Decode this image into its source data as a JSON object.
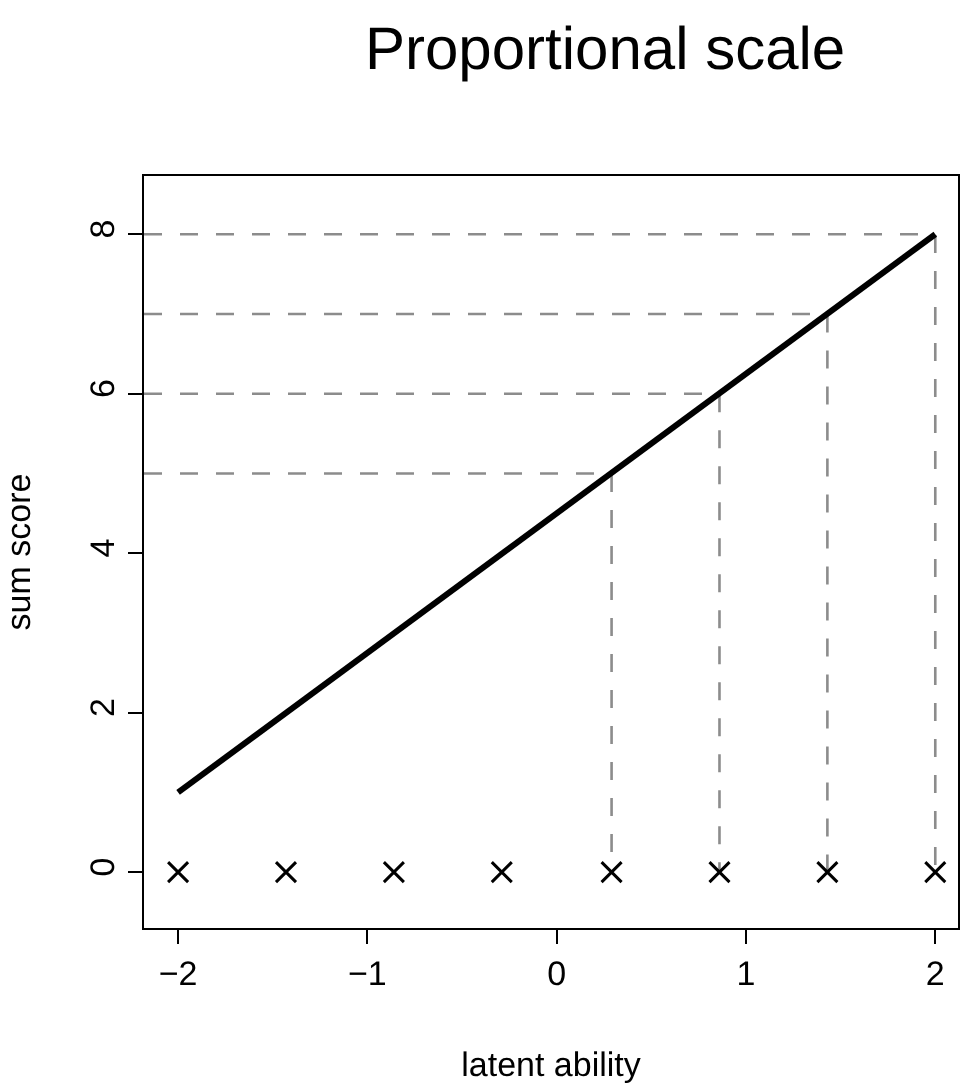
{
  "chart_data": {
    "type": "line",
    "title": "Proportional scale",
    "xlabel": "latent ability",
    "ylabel": "sum score",
    "xlim": [
      -2.18,
      2.12
    ],
    "ylim": [
      -0.7,
      8.73
    ],
    "xticks": [
      {
        "value": -2,
        "label": "−2"
      },
      {
        "value": -1,
        "label": "−1"
      },
      0,
      1,
      2
    ],
    "yticks": [
      0,
      2,
      4,
      6,
      8
    ],
    "series": [
      {
        "type": "line",
        "color": "#8c8c8c",
        "line_style": "dashed",
        "marker": "none",
        "x": [
          -2.18,
          0.29,
          0.29
        ],
        "values": [
          5,
          5,
          0
        ]
      },
      {
        "type": "line",
        "color": "#8c8c8c",
        "line_style": "dashed",
        "marker": "none",
        "x": [
          -2.18,
          0.86,
          0.86
        ],
        "values": [
          6,
          6,
          0
        ]
      },
      {
        "type": "line",
        "color": "#8c8c8c",
        "line_style": "dashed",
        "marker": "none",
        "x": [
          -2.18,
          1.43,
          1.43
        ],
        "values": [
          7,
          7,
          0
        ]
      },
      {
        "type": "line",
        "color": "#8c8c8c",
        "line_style": "dashed",
        "marker": "none",
        "x": [
          -2.18,
          2,
          2
        ],
        "values": [
          8,
          8,
          0
        ]
      },
      {
        "color": "#000000",
        "line_style": "solid",
        "marker": "none",
        "x": [
          -2,
          2
        ],
        "values": [
          1,
          8
        ]
      },
      {
        "type": "scatter",
        "color": "#000000",
        "marker": "cross",
        "x": [
          -2,
          -1.43,
          -0.86,
          -0.29,
          0.29,
          0.86,
          1.43,
          2
        ],
        "values": [
          0,
          0,
          0,
          0,
          0,
          0,
          0,
          0
        ]
      }
    ]
  }
}
